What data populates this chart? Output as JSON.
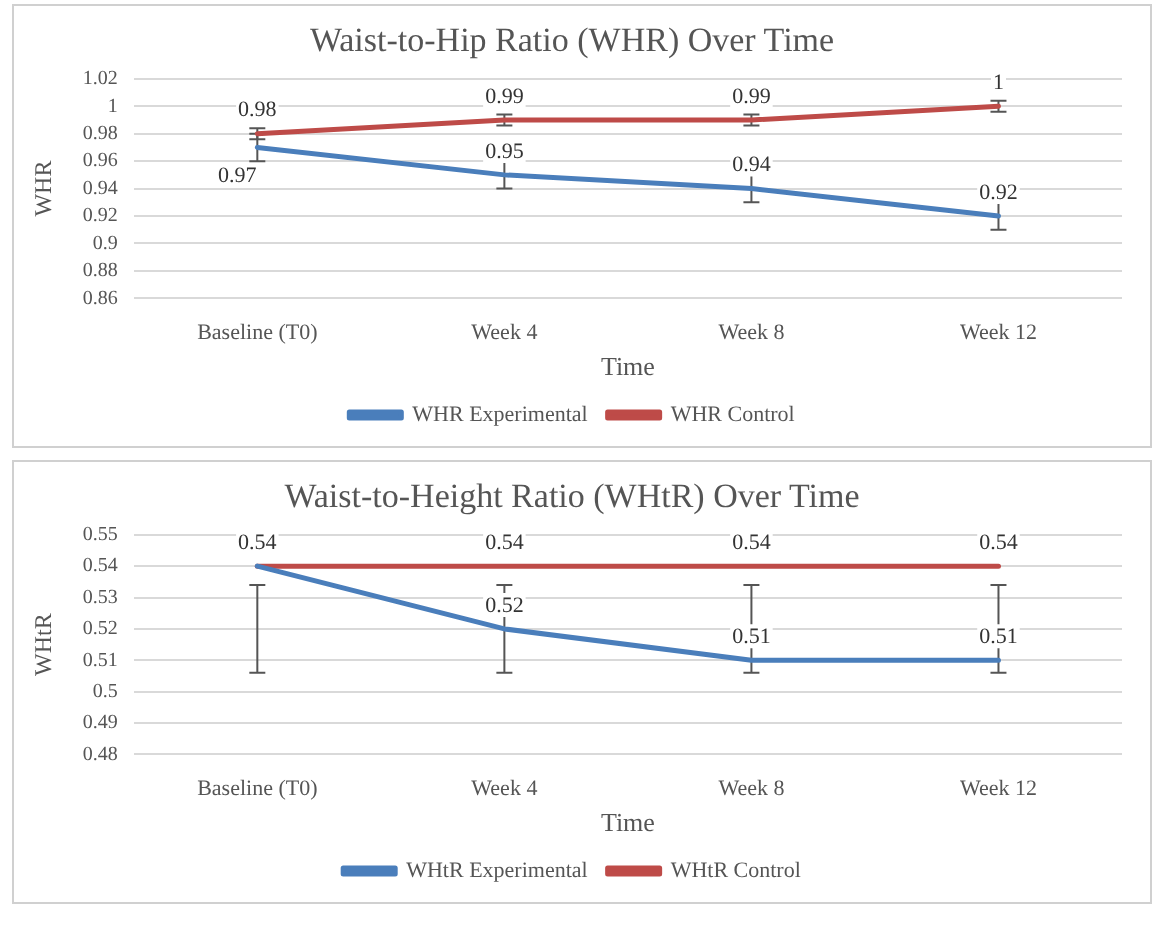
{
  "chart_data": [
    {
      "type": "line",
      "title": "Waist-to-Hip Ratio (WHR) Over Time",
      "xlabel": "Time",
      "ylabel": "WHR",
      "categories": [
        "Baseline (T0)",
        "Week 4",
        "Week 8",
        "Week 12"
      ],
      "series": [
        {
          "name": "WHR Experimental",
          "color": "#4a7ebb",
          "values": [
            0.97,
            0.95,
            0.94,
            0.92
          ],
          "errors": [
            0.01,
            0.01,
            0.01,
            0.01
          ]
        },
        {
          "name": "WHR Control",
          "color": "#be4b48",
          "values": [
            0.98,
            0.99,
            0.99,
            1
          ],
          "errors": [
            0.004,
            0.004,
            0.004,
            0.004
          ]
        }
      ],
      "ylim": [
        0.86,
        1.02
      ],
      "yticks": [
        0.86,
        0.88,
        0.9,
        0.92,
        0.94,
        0.96,
        0.98,
        1,
        1.02
      ],
      "grid": "y",
      "legend": "bottom",
      "data_labels": true,
      "line_style": "solid"
    },
    {
      "type": "line",
      "title": "Waist-to-Height Ratio (WHtR) Over Time",
      "xlabel": "Time",
      "ylabel": "WHtR",
      "categories": [
        "Baseline (T0)",
        "Week 4",
        "Week 8",
        "Week 12"
      ],
      "series": [
        {
          "name": "WHtR Experimental",
          "color": "#4a7ebb",
          "values": [
            0.54,
            0.52,
            0.51,
            0.51
          ],
          "errors": [
            [
              0.506,
              0.534
            ],
            [
              0.506,
              0.534
            ],
            [
              0.506,
              0.534
            ],
            [
              0.506,
              0.534
            ]
          ],
          "value_labels": [
            null,
            "0.52",
            "0.51",
            "0.51"
          ]
        },
        {
          "name": "WHtR Control",
          "color": "#be4b48",
          "values": [
            0.54,
            0.54,
            0.54,
            0.54
          ],
          "value_labels": [
            "0.54",
            "0.54",
            "0.54",
            "0.54"
          ]
        }
      ],
      "ylim": [
        0.48,
        0.55
      ],
      "yticks": [
        0.48,
        0.49,
        0.5,
        0.51,
        0.52,
        0.53,
        0.54,
        0.55
      ],
      "grid": "y",
      "legend": "bottom",
      "line_style": "solid"
    }
  ]
}
